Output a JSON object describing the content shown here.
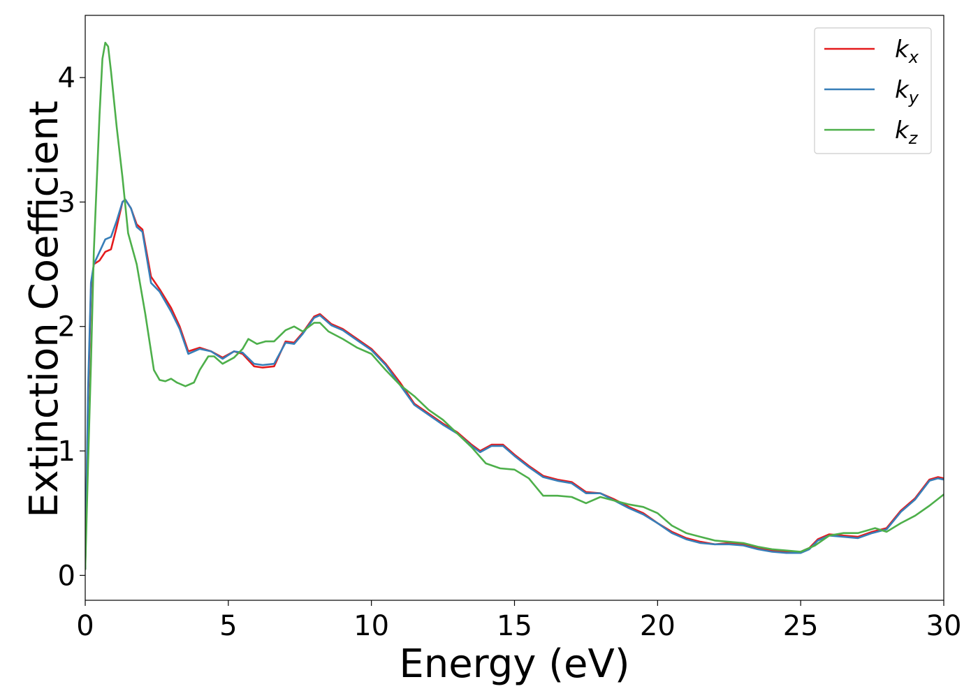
{
  "chart_data": {
    "type": "line",
    "title": "",
    "xlabel": "Energy (eV)",
    "ylabel": "Extinction Coefficient",
    "xlim": [
      0,
      30
    ],
    "ylim": [
      -0.2,
      4.5
    ],
    "xticks": [
      0,
      5,
      10,
      15,
      20,
      25,
      30
    ],
    "yticks": [
      0,
      1,
      2,
      3,
      4
    ],
    "grid": false,
    "legend_position": "top-right",
    "series": [
      {
        "name": "k",
        "subscript": "x",
        "color": "#e41a1c",
        "x": [
          0,
          0.1,
          0.2,
          0.3,
          0.5,
          0.7,
          0.9,
          1.1,
          1.3,
          1.4,
          1.6,
          1.8,
          2.0,
          2.3,
          2.6,
          3.0,
          3.3,
          3.6,
          4.0,
          4.4,
          4.8,
          5.2,
          5.5,
          5.9,
          6.2,
          6.6,
          7.0,
          7.3,
          7.6,
          8.0,
          8.2,
          8.6,
          9.0,
          9.5,
          10.0,
          10.5,
          11.0,
          11.5,
          12.0,
          12.5,
          13.0,
          13.5,
          13.8,
          14.2,
          14.6,
          15.0,
          15.5,
          16.0,
          16.5,
          17.0,
          17.5,
          18.0,
          18.5,
          19.0,
          19.5,
          20.0,
          20.5,
          21.0,
          21.5,
          22.0,
          22.5,
          23.0,
          23.5,
          24.0,
          24.5,
          25.0,
          25.3,
          25.6,
          26.0,
          26.5,
          27.0,
          27.5,
          28.0,
          28.5,
          29.0,
          29.5,
          29.8,
          30.0
        ],
        "y": [
          0.05,
          1.4,
          2.3,
          2.5,
          2.53,
          2.6,
          2.62,
          2.8,
          3.0,
          3.02,
          2.95,
          2.82,
          2.78,
          2.4,
          2.3,
          2.15,
          2.0,
          1.8,
          1.83,
          1.8,
          1.75,
          1.8,
          1.78,
          1.68,
          1.67,
          1.68,
          1.88,
          1.87,
          1.95,
          2.08,
          2.1,
          2.02,
          1.98,
          1.9,
          1.82,
          1.7,
          1.55,
          1.38,
          1.3,
          1.22,
          1.15,
          1.05,
          1.0,
          1.05,
          1.05,
          0.97,
          0.88,
          0.8,
          0.77,
          0.75,
          0.67,
          0.66,
          0.61,
          0.55,
          0.5,
          0.42,
          0.35,
          0.3,
          0.27,
          0.25,
          0.26,
          0.25,
          0.22,
          0.2,
          0.19,
          0.19,
          0.22,
          0.29,
          0.33,
          0.32,
          0.31,
          0.35,
          0.38,
          0.52,
          0.62,
          0.77,
          0.79,
          0.78
        ]
      },
      {
        "name": "k",
        "subscript": "y",
        "color": "#377eb8",
        "x": [
          0,
          0.1,
          0.2,
          0.3,
          0.5,
          0.7,
          0.9,
          1.1,
          1.3,
          1.4,
          1.6,
          1.8,
          2.0,
          2.3,
          2.6,
          3.0,
          3.3,
          3.6,
          4.0,
          4.4,
          4.8,
          5.2,
          5.5,
          5.9,
          6.2,
          6.6,
          7.0,
          7.3,
          7.6,
          8.0,
          8.2,
          8.6,
          9.0,
          9.5,
          10.0,
          10.5,
          11.0,
          11.5,
          12.0,
          12.5,
          13.0,
          13.5,
          13.8,
          14.2,
          14.6,
          15.0,
          15.5,
          16.0,
          16.5,
          17.0,
          17.5,
          18.0,
          18.5,
          19.0,
          19.5,
          20.0,
          20.5,
          21.0,
          21.5,
          22.0,
          22.5,
          23.0,
          23.5,
          24.0,
          24.5,
          25.0,
          25.3,
          25.6,
          26.0,
          26.5,
          27.0,
          27.5,
          28.0,
          28.5,
          29.0,
          29.5,
          29.8,
          30.0
        ],
        "y": [
          0.05,
          1.5,
          2.35,
          2.5,
          2.6,
          2.7,
          2.72,
          2.85,
          3.0,
          3.02,
          2.95,
          2.8,
          2.76,
          2.35,
          2.28,
          2.12,
          1.98,
          1.78,
          1.82,
          1.8,
          1.74,
          1.8,
          1.79,
          1.7,
          1.69,
          1.7,
          1.87,
          1.86,
          1.94,
          2.07,
          2.09,
          2.01,
          1.97,
          1.89,
          1.81,
          1.69,
          1.53,
          1.37,
          1.29,
          1.21,
          1.14,
          1.04,
          0.99,
          1.04,
          1.04,
          0.96,
          0.87,
          0.79,
          0.76,
          0.74,
          0.66,
          0.66,
          0.6,
          0.54,
          0.49,
          0.42,
          0.34,
          0.29,
          0.26,
          0.25,
          0.25,
          0.24,
          0.21,
          0.19,
          0.18,
          0.18,
          0.21,
          0.28,
          0.32,
          0.31,
          0.3,
          0.34,
          0.37,
          0.51,
          0.61,
          0.76,
          0.78,
          0.77
        ]
      },
      {
        "name": "k",
        "subscript": "z",
        "color": "#4daf4a",
        "x": [
          0,
          0.1,
          0.2,
          0.3,
          0.5,
          0.6,
          0.7,
          0.8,
          0.9,
          1.1,
          1.3,
          1.5,
          1.8,
          2.1,
          2.4,
          2.6,
          2.8,
          3.0,
          3.2,
          3.5,
          3.8,
          4.0,
          4.3,
          4.5,
          4.8,
          5.2,
          5.5,
          5.7,
          6.0,
          6.3,
          6.6,
          7.0,
          7.3,
          7.6,
          8.0,
          8.2,
          8.5,
          9.0,
          9.5,
          10.0,
          10.5,
          11.0,
          11.5,
          12.0,
          12.5,
          13.0,
          13.5,
          14.0,
          14.5,
          15.0,
          15.5,
          16.0,
          16.5,
          17.0,
          17.5,
          18.0,
          18.5,
          19.0,
          19.5,
          20.0,
          20.5,
          21.0,
          21.5,
          22.0,
          22.5,
          23.0,
          23.5,
          24.0,
          24.5,
          25.0,
          25.5,
          26.0,
          26.5,
          27.0,
          27.3,
          27.6,
          28.0,
          28.5,
          29.0,
          29.5,
          30.0
        ],
        "y": [
          0.05,
          0.9,
          1.7,
          2.6,
          3.7,
          4.15,
          4.28,
          4.25,
          4.05,
          3.6,
          3.2,
          2.75,
          2.5,
          2.1,
          1.65,
          1.57,
          1.56,
          1.58,
          1.55,
          1.52,
          1.55,
          1.65,
          1.76,
          1.76,
          1.7,
          1.75,
          1.82,
          1.9,
          1.86,
          1.88,
          1.88,
          1.97,
          2.0,
          1.96,
          2.03,
          2.03,
          1.96,
          1.9,
          1.83,
          1.78,
          1.65,
          1.53,
          1.44,
          1.33,
          1.25,
          1.14,
          1.03,
          0.9,
          0.86,
          0.85,
          0.78,
          0.64,
          0.64,
          0.63,
          0.58,
          0.63,
          0.6,
          0.57,
          0.55,
          0.5,
          0.4,
          0.34,
          0.31,
          0.28,
          0.27,
          0.26,
          0.23,
          0.21,
          0.2,
          0.19,
          0.24,
          0.32,
          0.34,
          0.34,
          0.36,
          0.38,
          0.35,
          0.42,
          0.48,
          0.56,
          0.65
        ]
      }
    ]
  }
}
